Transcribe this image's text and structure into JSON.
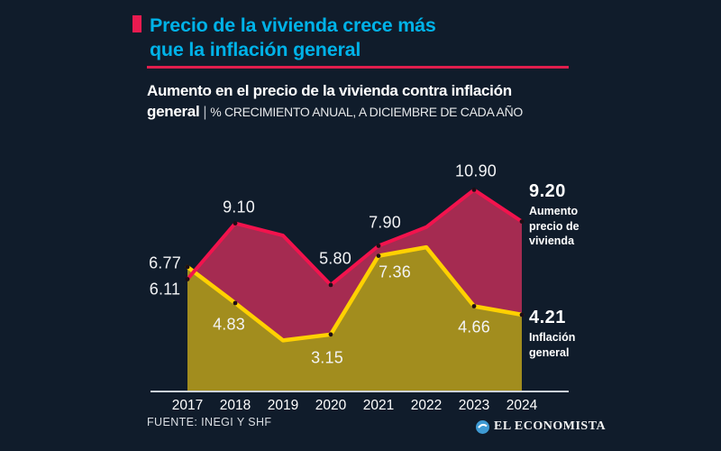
{
  "header": {
    "title_line1": "Precio de la vivienda crece más",
    "title_line2": "que la inflación general",
    "title_color": "#00b2e8",
    "accent_color": "#ea1b50",
    "subtitle_bold_line1": "Aumento en el precio de la vivienda contra inflación",
    "subtitle_bold_line2": "general",
    "subtitle_separator": "|",
    "subtitle_caps": "% CRECIMIENTO ANUAL, A DICIEMBRE DE CADA AÑO"
  },
  "chart_data": {
    "type": "area",
    "title": "Aumento en el precio de la vivienda contra inflación general",
    "units": "% crecimiento anual, a diciembre de cada año",
    "categories": [
      "2017",
      "2018",
      "2019",
      "2020",
      "2021",
      "2022",
      "2023",
      "2024"
    ],
    "series": [
      {
        "name": "Aumento precio de vivienda",
        "line_color": "#f2134d",
        "fill_color": "#a52b51",
        "values": [
          6.11,
          9.1,
          8.45,
          5.8,
          7.9,
          8.9,
          10.9,
          9.2
        ],
        "point_labels": [
          "6.11",
          "9.10",
          "",
          "5.80",
          "7.90",
          "",
          "10.90",
          "9.20"
        ]
      },
      {
        "name": "Inflación general",
        "line_color": "#ffd101",
        "fill_color": "#a28d1e",
        "values": [
          6.77,
          4.83,
          2.83,
          3.15,
          7.36,
          7.82,
          4.66,
          4.21
        ],
        "point_labels": [
          "6.77",
          "4.83",
          "",
          "3.15",
          "7.36",
          "",
          "4.66",
          "4.21"
        ]
      }
    ],
    "ylim": [
      0,
      12
    ],
    "grid": false,
    "axis_color": "#ccd2d9",
    "marker_color": "#1d0e15",
    "legend_position": "right-of-last-point"
  },
  "annotations": {
    "housing": {
      "value": "9.20",
      "line1": "Aumento",
      "line2": "precio de",
      "line3": "vivienda"
    },
    "inflation": {
      "value": "4.21",
      "line1": "Inflación",
      "line2": "general",
      "line3": ""
    }
  },
  "footer": {
    "source": "FUENTE: INEGI Y SHF",
    "brand": "EL ECONOMISTA",
    "brand_icon_color": "#3e9ad3"
  }
}
